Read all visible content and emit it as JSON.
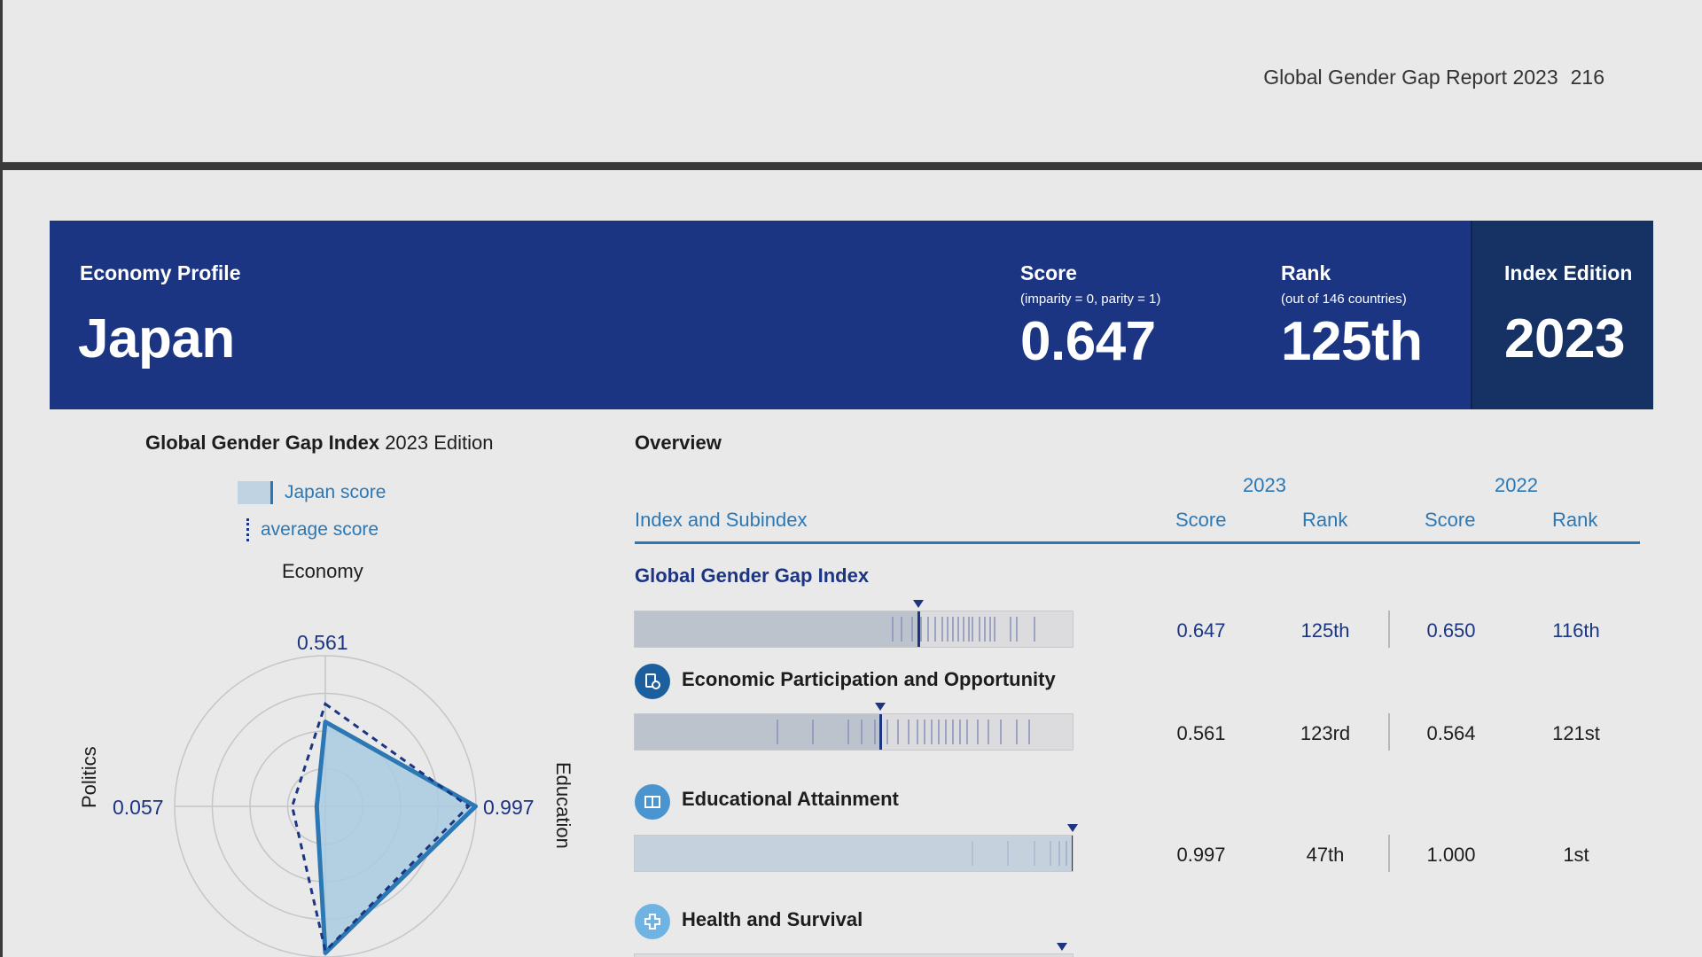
{
  "header": {
    "report_title": "Global Gender Gap Report 2023",
    "page_number": "216"
  },
  "banner": {
    "profile_label": "Economy Profile",
    "country": "Japan",
    "score_label": "Score",
    "score_sub": "(imparity = 0, parity = 1)",
    "score_value": "0.647",
    "rank_label": "Rank",
    "rank_sub": "(out of 146 countries)",
    "rank_value": "125th",
    "edition_label": "Index Edition",
    "edition_value": "2023"
  },
  "radar": {
    "title_bold": "Global Gender Gap Index",
    "title_rest": "2023 Edition",
    "legend_score": "Japan score",
    "legend_avg": "average score",
    "axis_top": "Economy",
    "axis_left": "Politics",
    "axis_right": "Education",
    "val_top": "0.561",
    "val_left": "0.057",
    "val_right": "0.997",
    "values": {
      "economy": 0.561,
      "education": 0.997,
      "health": 0.973,
      "politics": 0.057
    },
    "average": {
      "economy": 0.68,
      "education": 0.95,
      "health": 0.96,
      "politics": 0.22
    }
  },
  "overview": {
    "title": "Overview",
    "year_2023": "2023",
    "year_2022": "2022",
    "col_index": "Index and Subindex",
    "col_score_2023": "Score",
    "col_rank_2023": "Rank",
    "col_score_2022": "Score",
    "col_rank_2022": "Rank",
    "rows": [
      {
        "name": "Global Gender Gap Index",
        "score_2023": "0.647",
        "rank_2023": "125th",
        "score_2022": "0.650",
        "rank_2022": "116th",
        "bar_value": 0.647
      },
      {
        "name": "Economic Participation and Opportunity",
        "score_2023": "0.561",
        "rank_2023": "123rd",
        "score_2022": "0.564",
        "rank_2022": "121st",
        "bar_value": 0.561
      },
      {
        "name": "Educational Attainment",
        "score_2023": "0.997",
        "rank_2023": "47th",
        "score_2022": "1.000",
        "rank_2022": "1st",
        "bar_value": 0.997
      },
      {
        "name": "Health and Survival",
        "bar_value": 0.973
      }
    ]
  },
  "colors": {
    "navy": "#1b3582",
    "blue": "#2c78b5",
    "edition_bg": "#163265",
    "page_bg": "#e9e9e9"
  },
  "icons": [
    "economy-icon",
    "education-icon",
    "health-icon"
  ]
}
